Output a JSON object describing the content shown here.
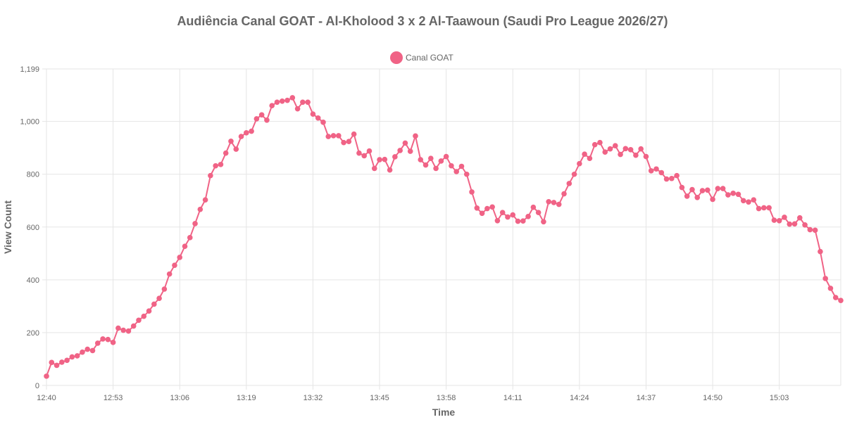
{
  "colors": {
    "series": "#f06386",
    "grid": "#e5e5e5",
    "text": "#666666"
  },
  "chart_data": {
    "type": "line",
    "title": "Audiência Canal GOAT - Al-Kholood 3 x 2 Al-Taawoun (Saudi Pro League 2026/27)",
    "xlabel": "Time",
    "ylabel": "View Count",
    "ylim": [
      0,
      1199
    ],
    "yticks": [
      0,
      200,
      400,
      600,
      800,
      1000,
      1199
    ],
    "ytick_labels": [
      "0",
      "200",
      "400",
      "600",
      "800",
      "1,000",
      "1,199"
    ],
    "xticks": [
      "12:40",
      "12:53",
      "13:06",
      "13:19",
      "13:32",
      "13:45",
      "13:58",
      "14:11",
      "14:24",
      "14:37",
      "14:50",
      "15:03"
    ],
    "grid": true,
    "legend_position": "top",
    "series": [
      {
        "name": "Canal GOAT",
        "color": "#f06386",
        "values": [
          35,
          87,
          76,
          88,
          95,
          108,
          112,
          126,
          137,
          132,
          160,
          176,
          174,
          163,
          217,
          209,
          206,
          225,
          247,
          262,
          282,
          308,
          330,
          365,
          422,
          455,
          485,
          527,
          560,
          613,
          667,
          703,
          795,
          832,
          837,
          880,
          925,
          895,
          943,
          957,
          963,
          1010,
          1025,
          1005,
          1060,
          1073,
          1077,
          1080,
          1090,
          1048,
          1073,
          1073,
          1028,
          1013,
          997,
          943,
          946,
          946,
          920,
          924,
          952,
          880,
          870,
          888,
          822,
          855,
          856,
          816,
          866,
          890,
          918,
          887,
          945,
          855,
          835,
          860,
          822,
          850,
          867,
          832,
          810,
          830,
          800,
          733,
          672,
          652,
          670,
          676,
          624,
          655,
          638,
          646,
          622,
          623,
          640,
          675,
          655,
          620,
          696,
          693,
          686,
          726,
          765,
          800,
          840,
          876,
          860,
          912,
          920,
          884,
          896,
          908,
          875,
          897,
          893,
          872,
          896,
          867,
          813,
          820,
          806,
          782,
          784,
          795,
          750,
          717,
          742,
          712,
          738,
          740,
          705,
          746,
          746,
          722,
          728,
          724,
          700,
          695,
          703,
          670,
          673,
          673,
          626,
          624,
          637,
          611,
          612,
          635,
          608,
          590,
          588,
          507,
          405,
          368,
          333,
          322
        ]
      }
    ]
  }
}
